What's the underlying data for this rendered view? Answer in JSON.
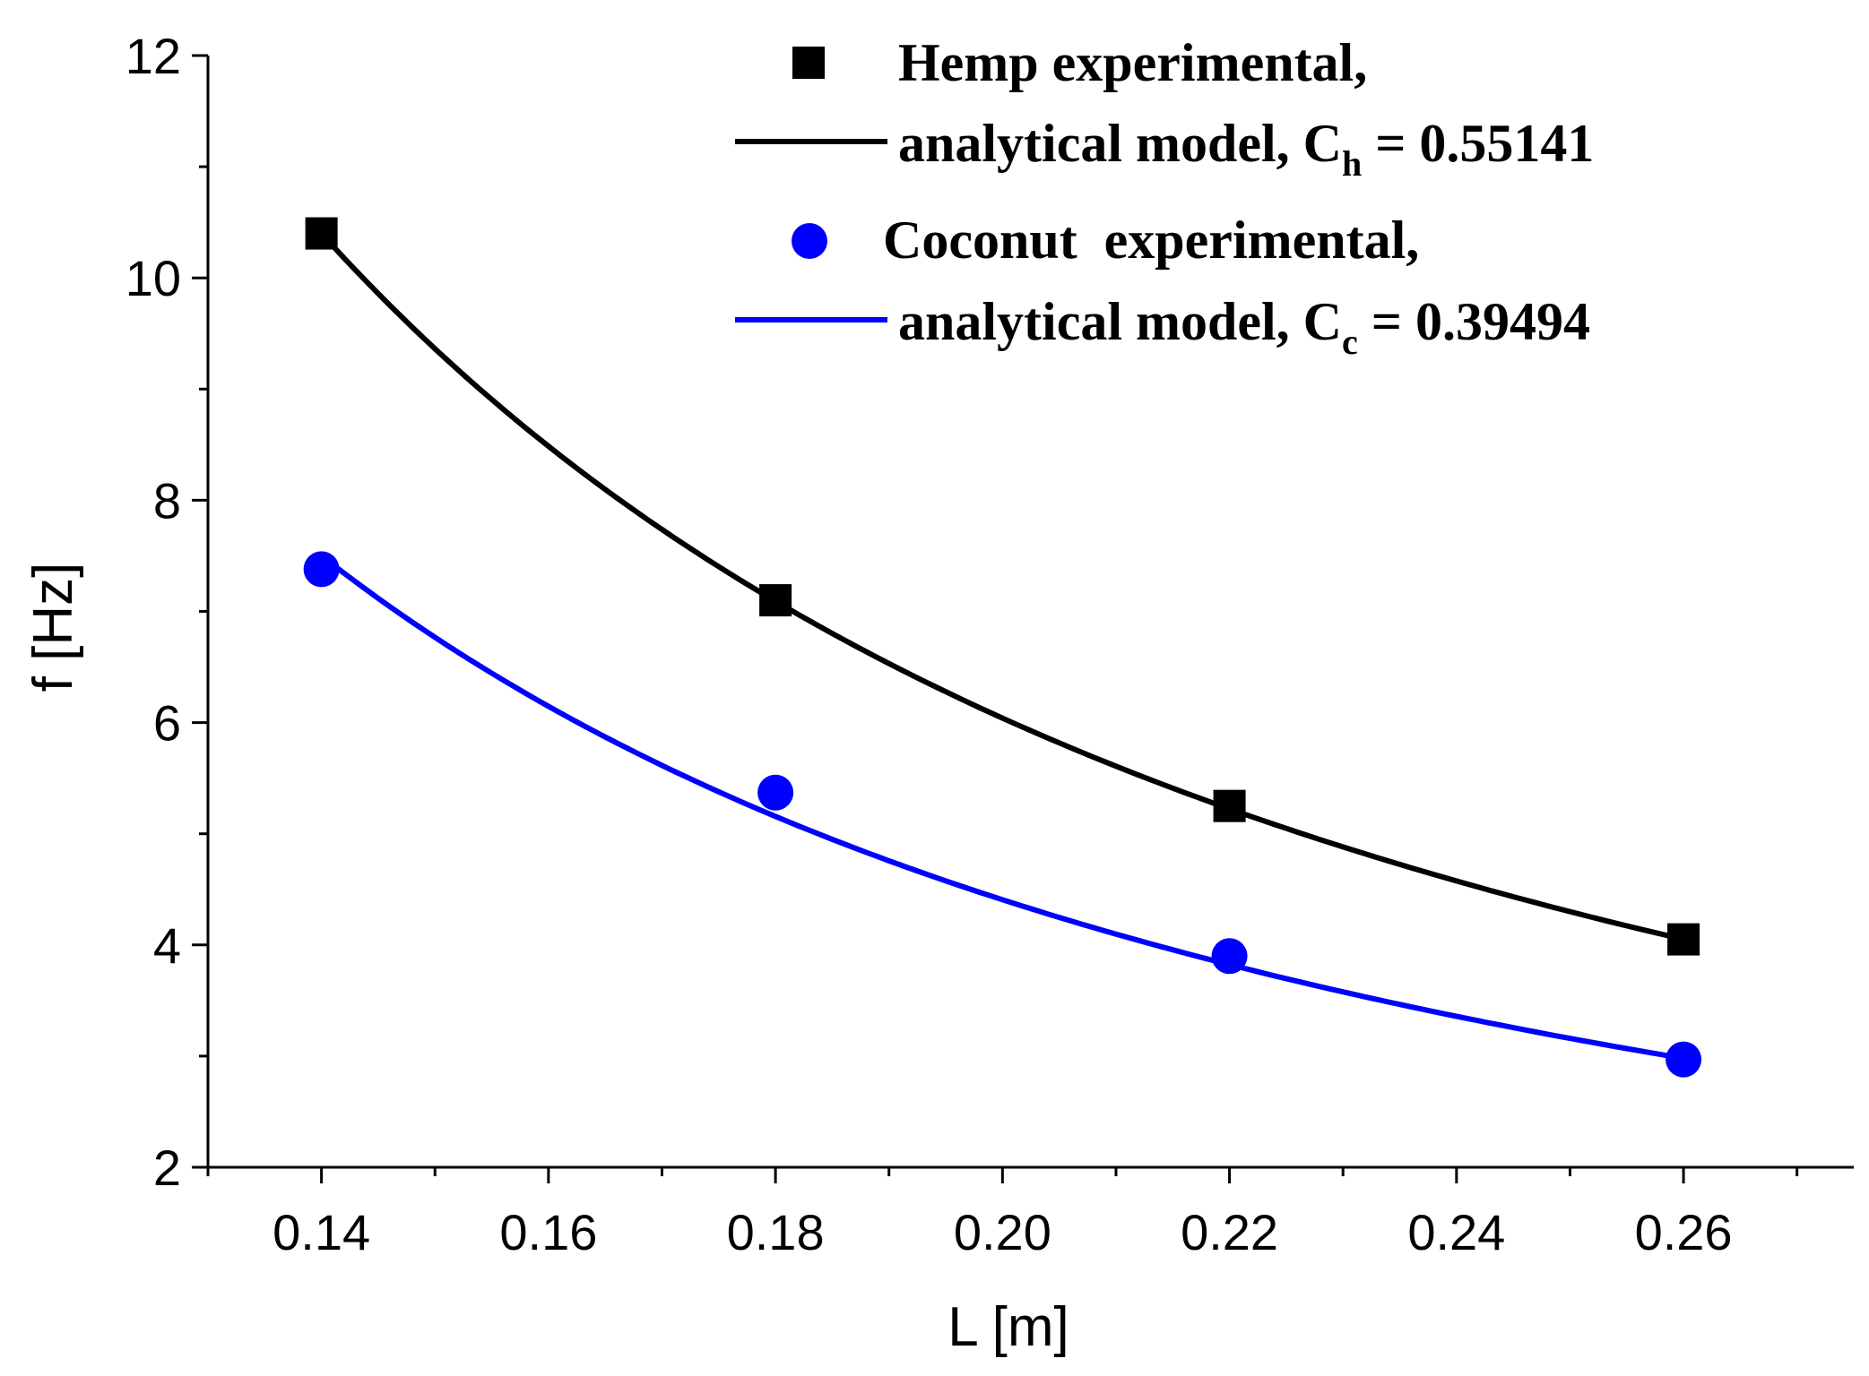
{
  "chart_data": {
    "type": "scatter",
    "title": "",
    "xlabel": "L [m]",
    "ylabel": "f  [Hz]",
    "xlim": [
      0.13,
      0.275
    ],
    "ylim": [
      2,
      12
    ],
    "x_ticks": [
      "0.14",
      "0.16",
      "0.18",
      "0.20",
      "0.22",
      "0.24",
      "0.26"
    ],
    "x_tick_values": [
      0.14,
      0.16,
      0.18,
      0.2,
      0.22,
      0.24,
      0.26
    ],
    "y_ticks": [
      "2",
      "4",
      "6",
      "8",
      "10",
      "12"
    ],
    "y_tick_values": [
      2,
      4,
      6,
      8,
      10,
      12
    ],
    "series": [
      {
        "name": "Hemp experimental,",
        "kind": "markers",
        "marker": "square",
        "color": "#000000",
        "x": [
          0.14,
          0.18,
          0.22,
          0.26
        ],
        "y": [
          10.4,
          7.1,
          5.25,
          4.05
        ]
      },
      {
        "name": "analytical model, C_h = 0.55141",
        "kind": "line",
        "color": "#000000",
        "C": 0.55141,
        "x": [
          0.14,
          0.16,
          0.18,
          0.2,
          0.22,
          0.24,
          0.26
        ],
        "y": [
          10.4,
          8.5,
          7.1,
          6.05,
          5.25,
          4.6,
          4.05
        ]
      },
      {
        "name": "Coconut  experimental,",
        "kind": "markers",
        "marker": "circle",
        "color": "#0000ff",
        "x": [
          0.14,
          0.18,
          0.22,
          0.26
        ],
        "y": [
          7.38,
          5.37,
          3.9,
          2.97
        ]
      },
      {
        "name": "analytical model, C_c = 0.39494",
        "kind": "line",
        "color": "#0000ff",
        "C": 0.39494,
        "x": [
          0.14,
          0.16,
          0.18,
          0.2,
          0.22,
          0.24,
          0.26
        ],
        "y": [
          7.5,
          6.15,
          5.15,
          4.4,
          3.85,
          3.35,
          2.98
        ]
      }
    ],
    "legend": {
      "position": "top-right",
      "entries": [
        {
          "text": "Hemp experimental,"
        },
        {
          "text": "analytical model, C",
          "sub": "h",
          "tail": " = 0.55141"
        },
        {
          "text": "Coconut  experimental,"
        },
        {
          "text": "analytical model, C",
          "sub": "c",
          "tail": " = 0.39494"
        }
      ]
    }
  }
}
